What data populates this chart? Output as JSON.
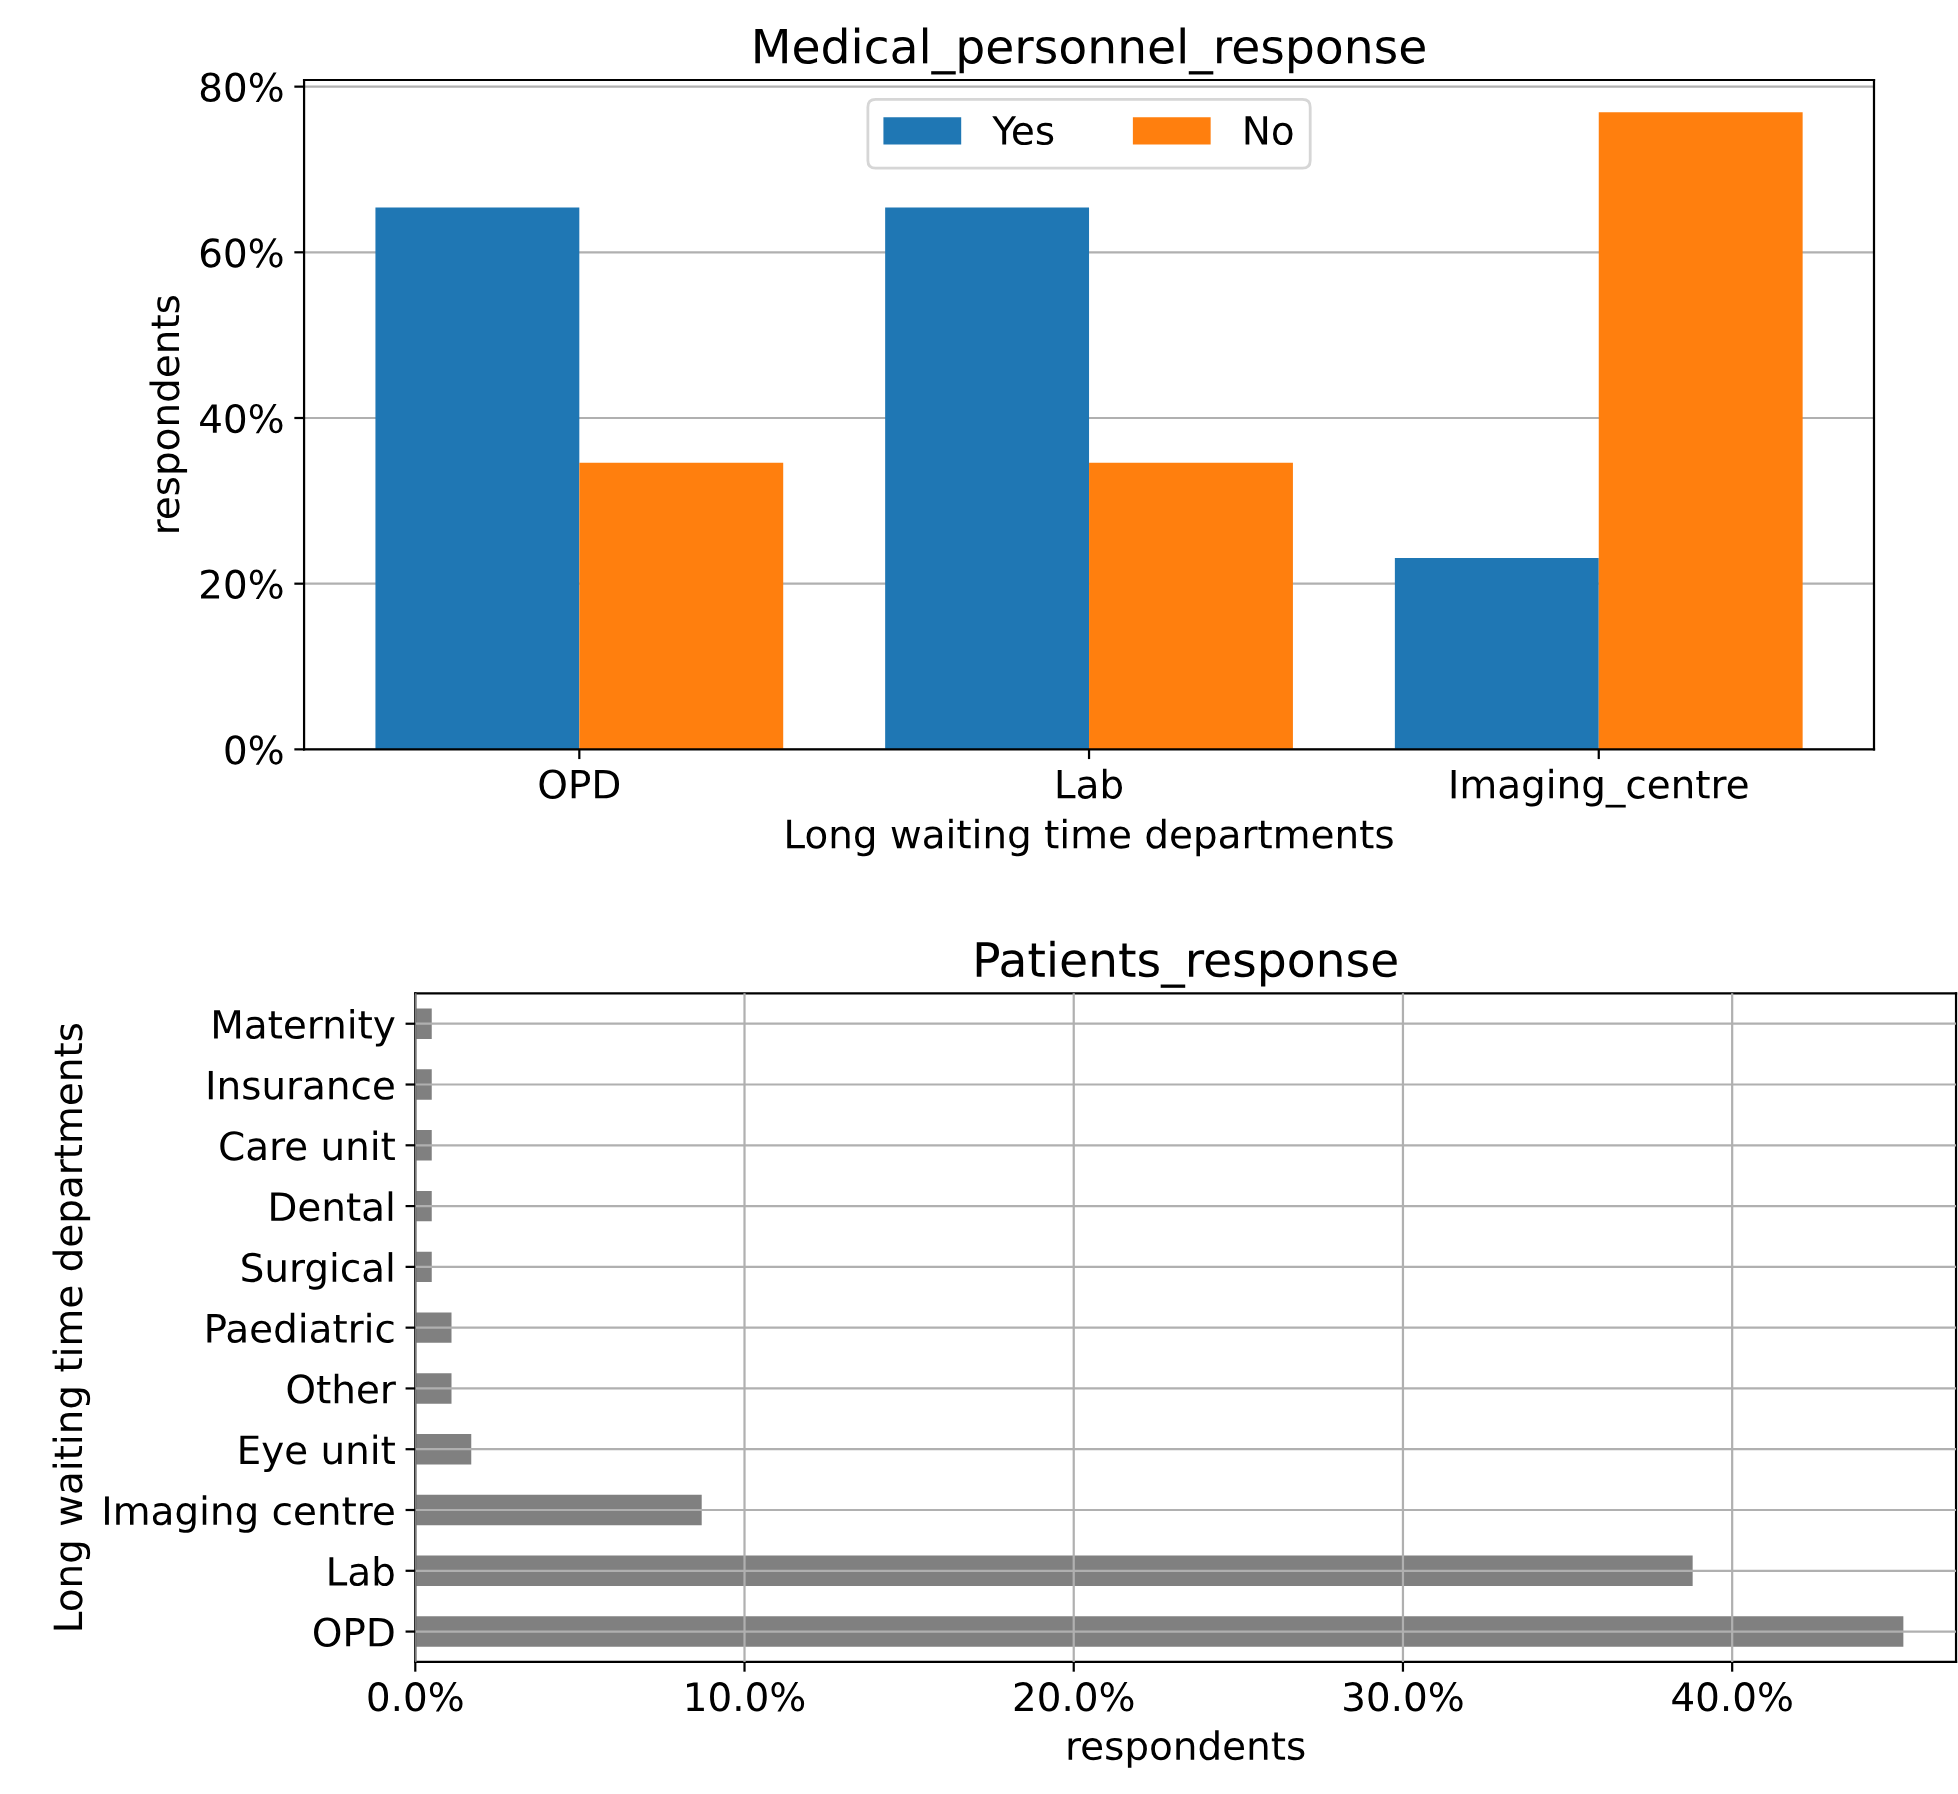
{
  "chart_data": [
    {
      "type": "bar",
      "title": "Medical_personnel_response",
      "xlabel": "Long waiting time departments",
      "ylabel": "respondents",
      "categories": [
        "OPD",
        "Lab",
        "Imaging_centre"
      ],
      "series": [
        {
          "name": "Yes",
          "color": "#1f77b4",
          "values": [
            65.4,
            65.4,
            23.1
          ]
        },
        {
          "name": "No",
          "color": "#ff7f0e",
          "values": [
            34.6,
            34.6,
            76.9
          ]
        }
      ],
      "ylim": [
        0,
        80.8
      ],
      "yticks": [
        {
          "value": 0,
          "label": "0%"
        },
        {
          "value": 20,
          "label": "20%"
        },
        {
          "value": 40,
          "label": "40%"
        },
        {
          "value": 60,
          "label": "60%"
        },
        {
          "value": 80,
          "label": "80%"
        }
      ],
      "grid": "y",
      "legend": "top"
    },
    {
      "type": "bar",
      "orientation": "horizontal",
      "title": "Patients_response",
      "xlabel": "respondents",
      "ylabel": "Long waiting time departments",
      "categories": [
        "Maternity",
        "Insurance",
        "Care unit",
        "Dental",
        "Surgical",
        "Paediatric",
        "Other",
        "Eye unit",
        "Imaging centre",
        "Lab",
        "OPD"
      ],
      "values": [
        0.5,
        0.5,
        0.5,
        0.5,
        0.5,
        1.1,
        1.1,
        1.7,
        8.7,
        38.8,
        45.2
      ],
      "color": "#808080",
      "xlim": [
        0,
        46.8
      ],
      "xticks": [
        {
          "value": 0,
          "label": "0.0%"
        },
        {
          "value": 10,
          "label": "10.0%"
        },
        {
          "value": 20,
          "label": "20.0%"
        },
        {
          "value": 30,
          "label": "30.0%"
        },
        {
          "value": 40,
          "label": "40.0%"
        }
      ],
      "grid": true
    }
  ]
}
